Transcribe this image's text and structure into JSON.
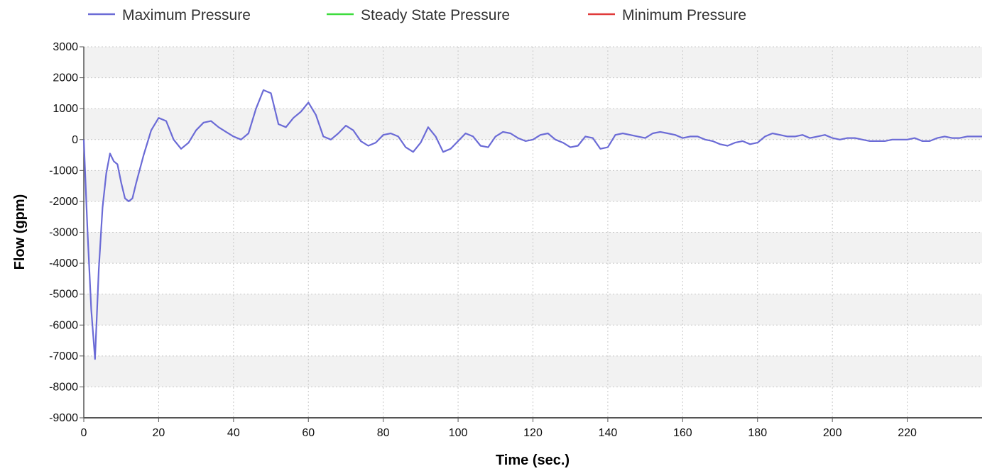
{
  "chart_data": {
    "type": "line",
    "title": "",
    "xlabel": "Time (sec.)",
    "ylabel": "Flow (gpm)",
    "xlim": [
      0,
      240
    ],
    "ylim": [
      -9000,
      3000
    ],
    "x_ticks": [
      0,
      20,
      40,
      60,
      80,
      100,
      120,
      140,
      160,
      180,
      200,
      220
    ],
    "y_ticks": [
      3000,
      2000,
      1000,
      0,
      -1000,
      -2000,
      -3000,
      -4000,
      -5000,
      -6000,
      -7000,
      -8000,
      -9000
    ],
    "grid": true,
    "legend_position": "top-left",
    "legend": [
      {
        "name": "Maximum Pressure",
        "color": "#6b6bd6"
      },
      {
        "name": "Steady State Pressure",
        "color": "#3ddc3d"
      },
      {
        "name": "Minimum Pressure",
        "color": "#e03a3a"
      }
    ],
    "series": [
      {
        "name": "Maximum Pressure",
        "color": "#6b6bd6",
        "x": [
          0,
          1,
          2,
          3,
          4,
          5,
          6,
          7,
          8,
          9,
          10,
          11,
          12,
          13,
          14,
          16,
          18,
          20,
          22,
          24,
          26,
          28,
          30,
          32,
          34,
          36,
          38,
          40,
          42,
          44,
          46,
          48,
          50,
          52,
          54,
          56,
          58,
          60,
          62,
          64,
          66,
          68,
          70,
          72,
          74,
          76,
          78,
          80,
          82,
          84,
          86,
          88,
          90,
          92,
          94,
          96,
          98,
          100,
          102,
          104,
          106,
          108,
          110,
          112,
          114,
          116,
          118,
          120,
          122,
          124,
          126,
          128,
          130,
          132,
          134,
          136,
          138,
          140,
          142,
          144,
          146,
          148,
          150,
          152,
          154,
          156,
          158,
          160,
          162,
          164,
          166,
          168,
          170,
          172,
          174,
          176,
          178,
          180,
          182,
          184,
          186,
          188,
          190,
          192,
          194,
          196,
          198,
          200,
          202,
          204,
          206,
          208,
          210,
          212,
          214,
          216,
          218,
          220,
          222,
          224,
          226,
          228,
          230,
          232,
          234,
          236,
          238,
          240
        ],
        "y": [
          0,
          -3000,
          -5500,
          -7100,
          -4200,
          -2200,
          -1100,
          -450,
          -700,
          -800,
          -1400,
          -1900,
          -2000,
          -1900,
          -1400,
          -500,
          300,
          700,
          600,
          0,
          -300,
          -100,
          300,
          550,
          600,
          400,
          250,
          100,
          0,
          200,
          1000,
          1600,
          1500,
          500,
          400,
          700,
          900,
          1200,
          800,
          100,
          0,
          200,
          450,
          300,
          -50,
          -200,
          -100,
          150,
          200,
          100,
          -250,
          -400,
          -100,
          400,
          100,
          -400,
          -300,
          -50,
          200,
          100,
          -200,
          -250,
          100,
          250,
          200,
          50,
          -50,
          0,
          150,
          200,
          0,
          -100,
          -250,
          -200,
          100,
          50,
          -300,
          -250,
          150,
          200,
          150,
          100,
          50,
          200,
          250,
          200,
          150,
          50,
          100,
          100,
          0,
          -50,
          -150,
          -200,
          -100,
          -50,
          -150,
          -100,
          100,
          200,
          150,
          100,
          100,
          150,
          50,
          100,
          150,
          50,
          0,
          50,
          50,
          0,
          -50,
          -50,
          -50,
          0,
          0,
          0,
          50,
          -50,
          -50,
          50,
          100,
          50,
          50,
          100,
          100,
          100
        ]
      },
      {
        "name": "Steady State Pressure",
        "color": "#3ddc3d",
        "x": [],
        "y": []
      },
      {
        "name": "Minimum Pressure",
        "color": "#e03a3a",
        "x": [],
        "y": []
      }
    ]
  }
}
